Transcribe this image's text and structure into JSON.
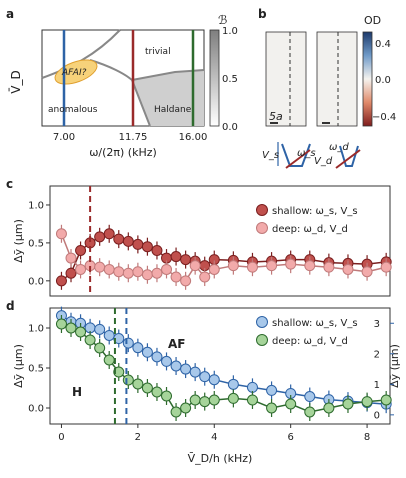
{
  "panel_labels": {
    "a": "a",
    "b": "b",
    "c": "c",
    "d": "d"
  },
  "panel_a": {
    "ylabel": "V̄_D",
    "xlabel": "ω/(2π) (kHz)",
    "xticks": [
      "7.00",
      "11.75",
      "16.00"
    ],
    "regions": {
      "trivial": "trivial",
      "anomalous": "anomalous",
      "haldane": "Haldane",
      "afai": "AFAI?"
    },
    "colorbar": {
      "label": "ℬ",
      "ticks": [
        "1.0",
        "0.5",
        "0.0"
      ]
    },
    "line_colors": {
      "blue": "#2e63a6",
      "red": "#9a2a2a",
      "green": "#2e6b2e"
    }
  },
  "panel_b": {
    "colorbar": {
      "label": "OD",
      "ticks": [
        "0.4",
        "0.0",
        "−0.4"
      ]
    },
    "scale_label": "5a",
    "labels": {
      "vs": "V_s",
      "ws": "ω_s",
      "wd": "ω_d",
      "vd": "V_d"
    }
  },
  "chart_data": [
    {
      "type": "scatter",
      "panel": "c",
      "ylabel": "Δȳ (μm)",
      "ylim": [
        -0.2,
        1.25
      ],
      "yticks": [
        "0.0",
        "0.5",
        "1.0"
      ],
      "vline": 0.75,
      "legend_position": "top-right",
      "series": [
        {
          "name": "shallow: ω_s, V_s",
          "color": "#c0504d",
          "x": [
            0.0,
            0.25,
            0.5,
            0.75,
            1.0,
            1.25,
            1.5,
            1.75,
            2.0,
            2.25,
            2.5,
            2.75,
            3.0,
            3.25,
            3.5,
            3.75,
            4.0,
            4.5,
            5.0,
            5.5,
            6.0,
            6.5,
            7.0,
            7.5,
            8.0,
            8.5
          ],
          "y": [
            0.0,
            0.1,
            0.4,
            0.5,
            0.58,
            0.62,
            0.55,
            0.52,
            0.48,
            0.45,
            0.4,
            0.3,
            0.32,
            0.28,
            0.26,
            0.2,
            0.28,
            0.27,
            0.25,
            0.26,
            0.28,
            0.28,
            0.24,
            0.23,
            0.22,
            0.25
          ]
        },
        {
          "name": "deep: ω_d, V_d",
          "color": "#f2aaaa",
          "x": [
            0.0,
            0.25,
            0.5,
            0.75,
            1.0,
            1.25,
            1.5,
            1.75,
            2.0,
            2.25,
            2.5,
            2.75,
            3.0,
            3.25,
            3.5,
            3.75,
            4.0,
            4.5,
            5.0,
            5.5,
            6.0,
            6.5,
            7.0,
            7.5,
            8.0,
            8.5
          ],
          "y": [
            0.62,
            0.3,
            0.15,
            0.2,
            0.18,
            0.15,
            0.12,
            0.1,
            0.12,
            0.08,
            0.1,
            0.15,
            0.05,
            0.0,
            0.2,
            0.05,
            0.15,
            0.2,
            0.18,
            0.2,
            0.22,
            0.2,
            0.18,
            0.15,
            0.12,
            0.18
          ]
        }
      ]
    },
    {
      "type": "scatter",
      "panel": "d",
      "xlabel": "V̄_D/h (kHz)",
      "xlim": [
        -0.3,
        8.6
      ],
      "xticks": [
        "0",
        "2",
        "4",
        "6",
        "8"
      ],
      "ylabel": "Δȳ (μm)",
      "ylim": [
        -0.2,
        1.25
      ],
      "yticks": [
        "0.0",
        "0.5",
        "1.0"
      ],
      "ylabel_right": "Δȳ (μm)",
      "yticks_right": [
        "0",
        "1",
        "2",
        "3"
      ],
      "vlines": [
        1.4,
        1.7
      ],
      "annotations": {
        "h": "H",
        "af": "AF"
      },
      "legend_position": "top-right",
      "series": [
        {
          "name": "shallow: ω_s, V_s",
          "color": "#a8c8ea",
          "x": [
            0.0,
            0.25,
            0.5,
            0.75,
            1.0,
            1.25,
            1.5,
            1.75,
            2.0,
            2.25,
            2.5,
            2.75,
            3.0,
            3.25,
            3.5,
            3.75,
            4.0,
            4.5,
            5.0,
            5.5,
            6.0,
            6.5,
            7.0,
            7.5,
            8.0,
            8.5
          ],
          "y": [
            3.25,
            3.05,
            3.0,
            2.85,
            2.8,
            2.6,
            2.5,
            2.35,
            2.2,
            2.05,
            1.9,
            1.75,
            1.6,
            1.5,
            1.4,
            1.25,
            1.15,
            1.0,
            0.9,
            0.8,
            0.7,
            0.6,
            0.5,
            0.45,
            0.4,
            0.35
          ]
        },
        {
          "name": "deep: ω_d, V_d",
          "color": "#a6d49a",
          "x": [
            0.0,
            0.25,
            0.5,
            0.75,
            1.0,
            1.25,
            1.5,
            1.75,
            2.0,
            2.25,
            2.5,
            2.75,
            3.0,
            3.25,
            3.5,
            3.75,
            4.0,
            4.5,
            5.0,
            5.5,
            6.0,
            6.5,
            7.0,
            7.5,
            8.0,
            8.5
          ],
          "y": [
            1.05,
            1.0,
            0.95,
            0.85,
            0.75,
            0.6,
            0.45,
            0.35,
            0.3,
            0.25,
            0.2,
            0.15,
            -0.05,
            0.0,
            0.1,
            0.08,
            0.1,
            0.12,
            0.1,
            0.0,
            0.05,
            -0.05,
            0.0,
            0.05,
            0.08,
            0.1
          ]
        }
      ]
    }
  ]
}
